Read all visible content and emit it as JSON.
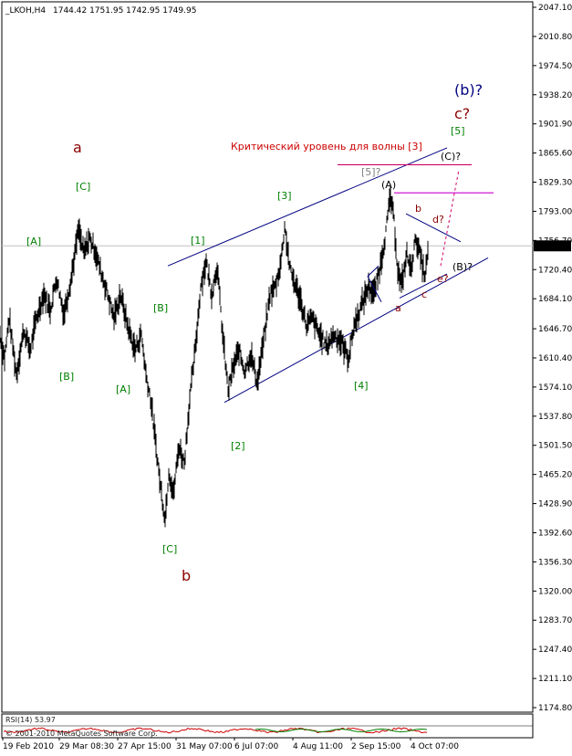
{
  "header": {
    "symbol": "_LKOH,H4",
    "ohlc": "1744.42 1751.95 1742.95 1749.95"
  },
  "footer": {
    "copyright": "RSI(14) 53.97",
    "copyright2": "© 2001-2010 MetaQuotes Software Corp."
  },
  "chart_data": {
    "type": "line",
    "y_range": [
      1174.8,
      2047.1
    ],
    "current_price": "1749.95",
    "y_ticks": [
      "2047.10",
      "2010.80",
      "1974.50",
      "1938.20",
      "1901.90",
      "1865.60",
      "1829.30",
      "1793.00",
      "1756.70",
      "1720.40",
      "1684.10",
      "1646.70",
      "1610.40",
      "1574.10",
      "1537.80",
      "1501.50",
      "1465.20",
      "1428.90",
      "1392.60",
      "1356.30",
      "1320.00",
      "1283.70",
      "1247.40",
      "1211.10",
      "1174.80"
    ],
    "x_ticks": [
      "19 Feb 2010",
      "29 Mar 08:30",
      "27 Apr 15:00",
      "31 May 07:00",
      "6 Jul 07:00",
      "4 Aug 11:00",
      "2 Sep 15:00",
      "4 Oct 07:00"
    ],
    "price_anchors": [
      [
        0,
        1640
      ],
      [
        5,
        1610
      ],
      [
        10,
        1660
      ],
      [
        18,
        1590
      ],
      [
        26,
        1645
      ],
      [
        33,
        1620
      ],
      [
        40,
        1660
      ],
      [
        48,
        1690
      ],
      [
        55,
        1670
      ],
      [
        62,
        1710
      ],
      [
        70,
        1665
      ],
      [
        78,
        1710
      ],
      [
        86,
        1770
      ],
      [
        92,
        1740
      ],
      [
        98,
        1760
      ],
      [
        104,
        1745
      ],
      [
        110,
        1720
      ],
      [
        118,
        1690
      ],
      [
        125,
        1660
      ],
      [
        132,
        1690
      ],
      [
        140,
        1650
      ],
      [
        148,
        1620
      ],
      [
        155,
        1640
      ],
      [
        160,
        1590
      ],
      [
        165,
        1560
      ],
      [
        170,
        1510
      ],
      [
        176,
        1450
      ],
      [
        181,
        1410
      ],
      [
        185,
        1470
      ],
      [
        190,
        1440
      ],
      [
        196,
        1500
      ],
      [
        202,
        1480
      ],
      [
        208,
        1560
      ],
      [
        214,
        1620
      ],
      [
        220,
        1700
      ],
      [
        226,
        1730
      ],
      [
        232,
        1690
      ],
      [
        238,
        1725
      ],
      [
        244,
        1640
      ],
      [
        250,
        1570
      ],
      [
        256,
        1600
      ],
      [
        262,
        1620
      ],
      [
        268,
        1595
      ],
      [
        275,
        1615
      ],
      [
        282,
        1580
      ],
      [
        290,
        1640
      ],
      [
        296,
        1690
      ],
      [
        302,
        1700
      ],
      [
        308,
        1730
      ],
      [
        312,
        1775
      ],
      [
        318,
        1720
      ],
      [
        324,
        1700
      ],
      [
        330,
        1680
      ],
      [
        336,
        1650
      ],
      [
        342,
        1660
      ],
      [
        350,
        1640
      ],
      [
        358,
        1625
      ],
      [
        366,
        1640
      ],
      [
        374,
        1630
      ],
      [
        382,
        1610
      ],
      [
        388,
        1650
      ],
      [
        396,
        1675
      ],
      [
        404,
        1700
      ],
      [
        410,
        1690
      ],
      [
        416,
        1720
      ],
      [
        422,
        1760
      ],
      [
        428,
        1812
      ],
      [
        432,
        1780
      ],
      [
        436,
        1720
      ],
      [
        440,
        1700
      ],
      [
        446,
        1740
      ],
      [
        450,
        1720
      ],
      [
        456,
        1760
      ],
      [
        462,
        1730
      ],
      [
        466,
        1712
      ],
      [
        470,
        1750
      ]
    ],
    "trend_lines": [
      {
        "from": [
          184,
          1725
        ],
        "to": [
          490,
          1872
        ]
      },
      {
        "from": [
          246,
          1555
        ],
        "to": [
          535,
          1735
        ]
      }
    ],
    "levels": [
      {
        "x1": 370,
        "x2": 517,
        "y": 1851,
        "color": "#cc0066"
      },
      {
        "x1": 432,
        "x2": 541,
        "y": 1816,
        "color": "#cc00cc"
      }
    ],
    "annotations": [
      {
        "text": "a",
        "color": "#8b0000",
        "big": true
      },
      {
        "text": "[C]",
        "color": "#008000"
      },
      {
        "text": "[A]",
        "color": "#008000"
      },
      {
        "text": "[B]",
        "color": "#008000"
      },
      {
        "text": "[B]",
        "color": "#008000"
      },
      {
        "text": "[A]",
        "color": "#008000"
      },
      {
        "text": "[1]",
        "color": "#008000"
      },
      {
        "text": "[2]",
        "color": "#008000"
      },
      {
        "text": "[3]",
        "color": "#008000"
      },
      {
        "text": "[4]",
        "color": "#008000"
      },
      {
        "text": "[5]",
        "color": "#008000"
      },
      {
        "text": "[C]",
        "color": "#008000"
      },
      {
        "text": "b",
        "color": "#8b0000",
        "big": true
      },
      {
        "text": "(b)?",
        "color": "#000080",
        "big": true
      },
      {
        "text": "c?",
        "color": "#8b0000",
        "big": true
      },
      {
        "text": "[5]?",
        "color": "#808080"
      },
      {
        "text": "(A)",
        "color": "#000000"
      },
      {
        "text": "(C)?",
        "color": "#000000"
      },
      {
        "text": "(B)?",
        "color": "#000000"
      },
      {
        "text": "b",
        "color": "#8b0000"
      },
      {
        "text": "d?",
        "color": "#8b0000"
      },
      {
        "text": "e?",
        "color": "#8b0000"
      },
      {
        "text": "a",
        "color": "#8b0000"
      },
      {
        "text": "c",
        "color": "#8b0000"
      },
      {
        "text": "Критический уровень для волны [3]",
        "color": "#cc0000"
      }
    ]
  }
}
